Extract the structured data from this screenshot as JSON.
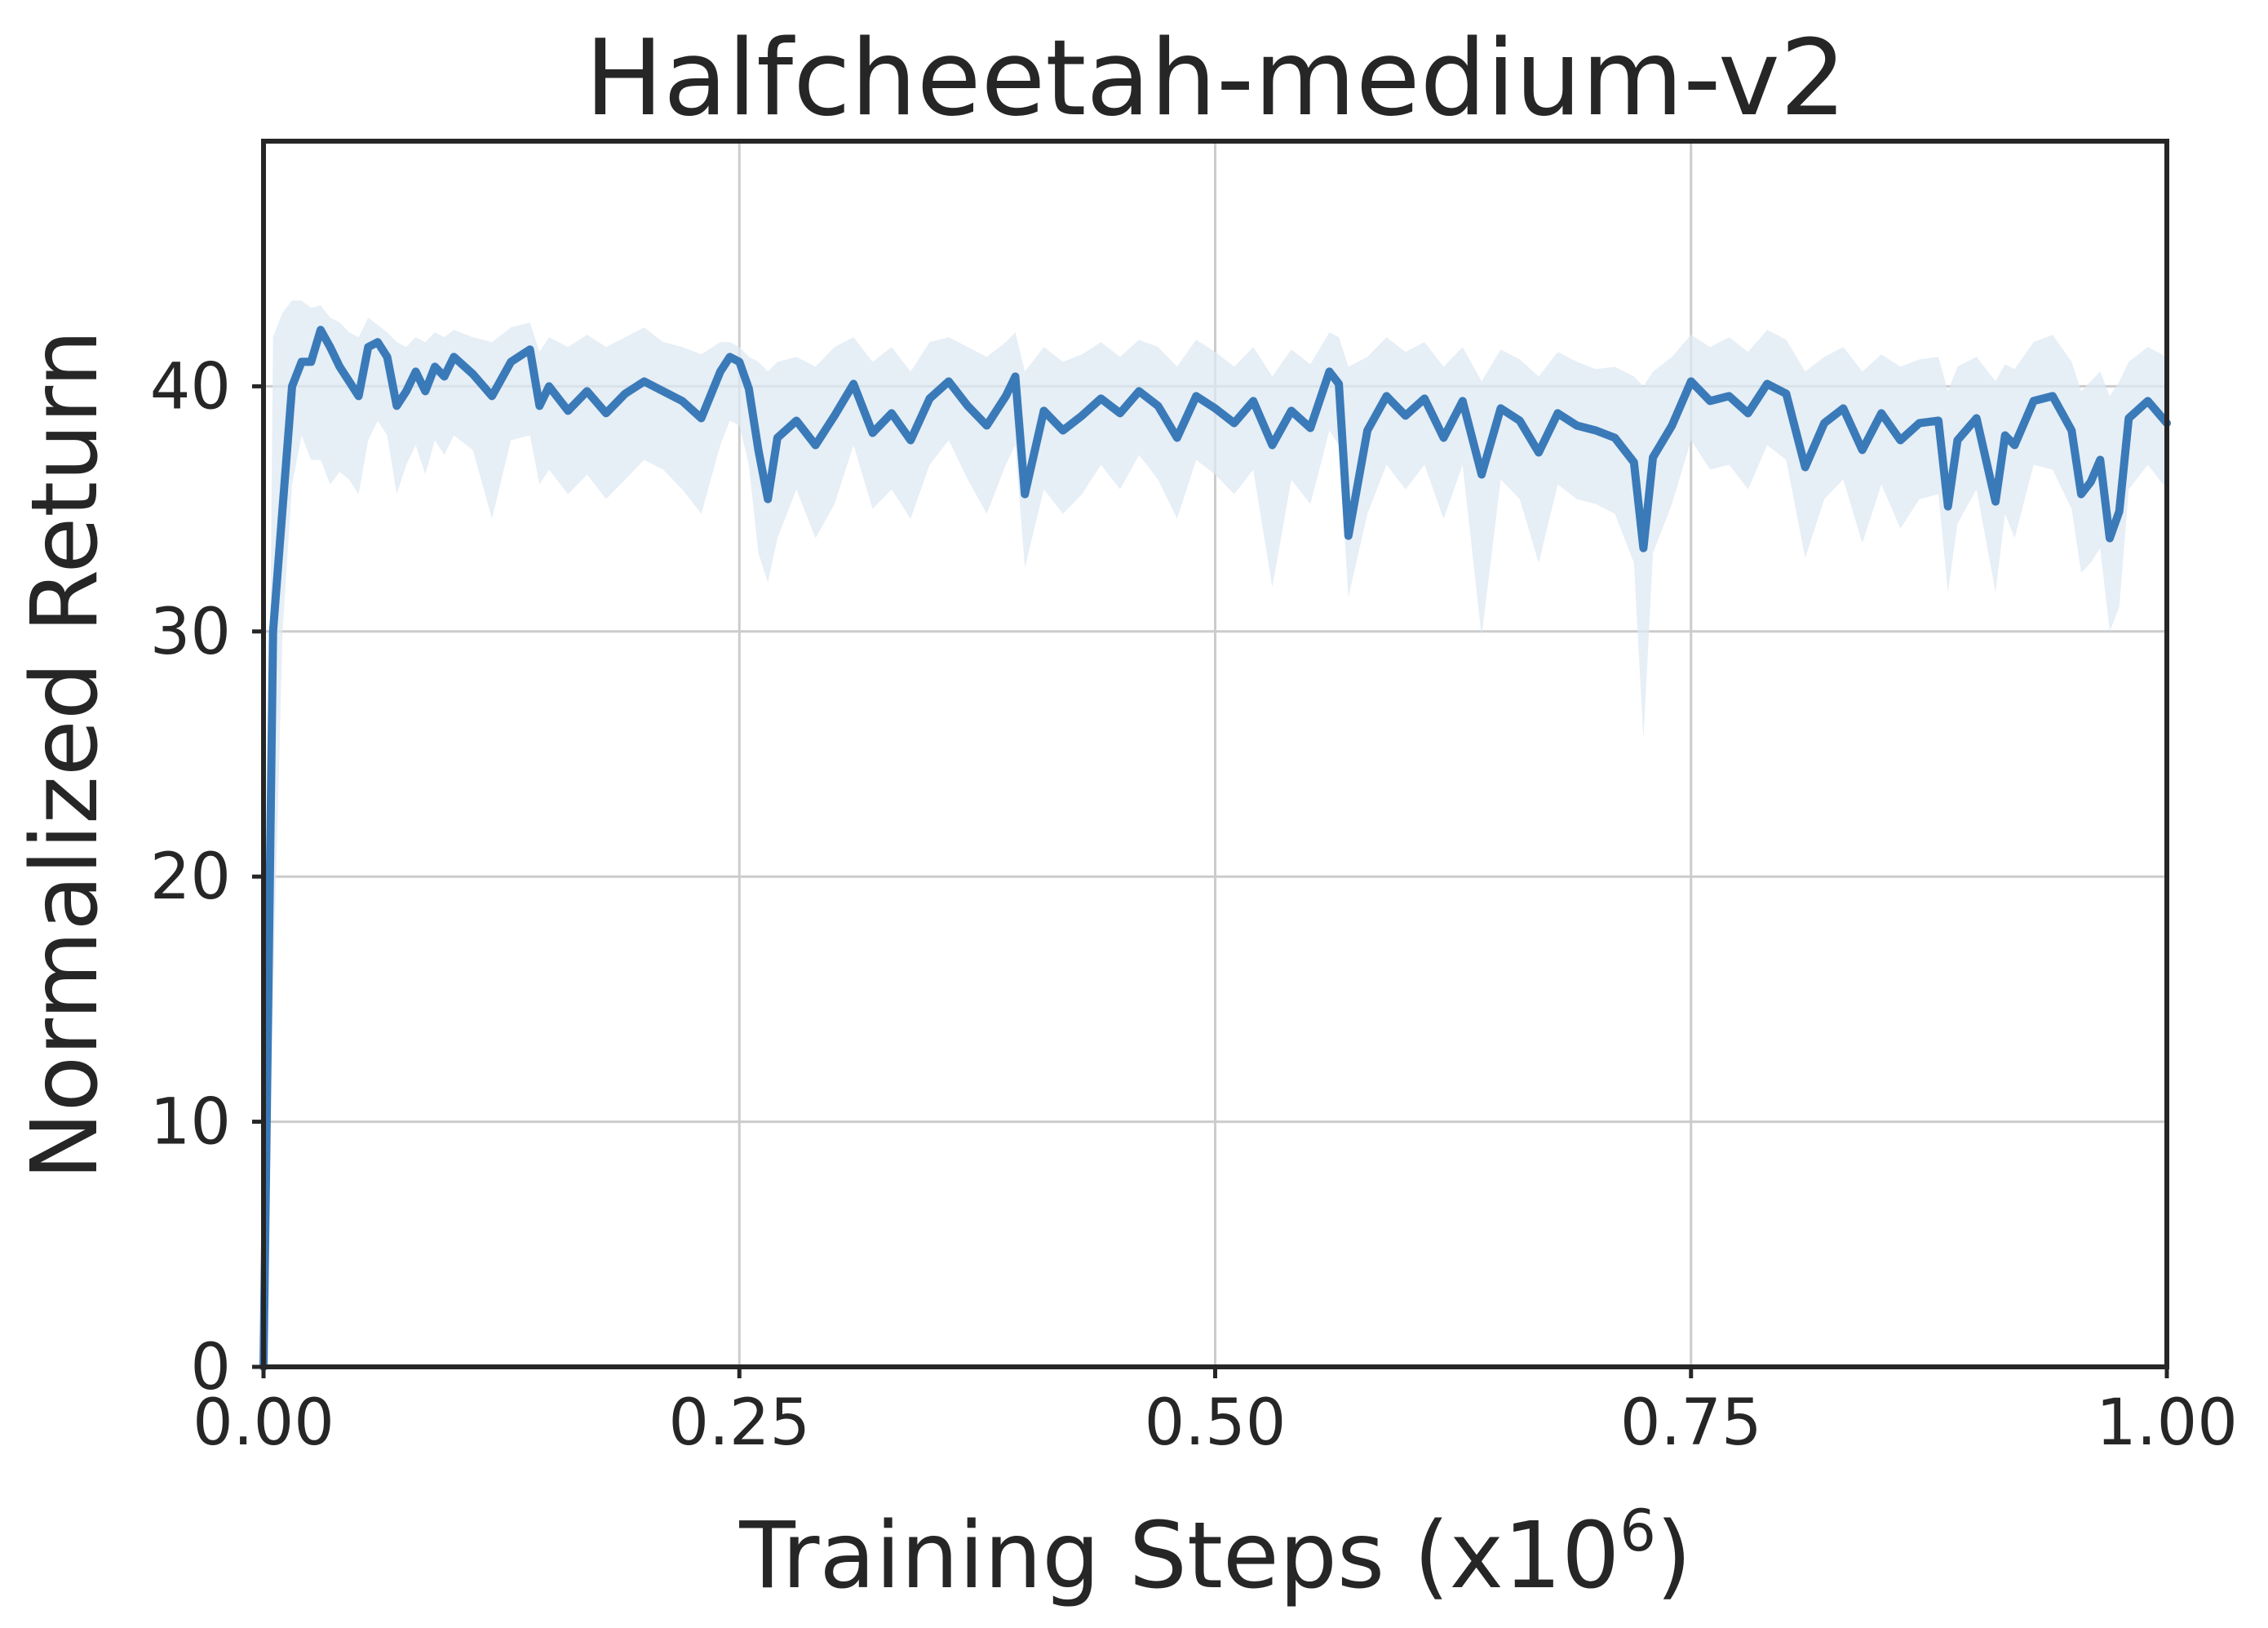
{
  "chart_data": {
    "type": "line",
    "title": "Halfcheetah-medium-v2",
    "xlabel_main": "Training Steps (x10",
    "xlabel_exp": "6",
    "xlabel_close": ")",
    "ylabel": "Normalized Return",
    "xlim": [
      0,
      1
    ],
    "ylim": [
      0,
      50
    ],
    "grid": true,
    "xticks": [
      0,
      0.25,
      0.5,
      0.75,
      1.0
    ],
    "xtick_labels": [
      "0.00",
      "0.25",
      "0.50",
      "0.75",
      "1.00"
    ],
    "yticks": [
      0,
      10,
      20,
      30,
      40
    ],
    "ytick_labels": [
      "0",
      "10",
      "20",
      "30",
      "40"
    ],
    "colors": {
      "line": "#3a7ab8",
      "band": "#dde8f3"
    },
    "series": [
      {
        "x": [
          0.0,
          0.005,
          0.01,
          0.015,
          0.02,
          0.025,
          0.03,
          0.035,
          0.04,
          0.045,
          0.05,
          0.055,
          0.06,
          0.065,
          0.07,
          0.075,
          0.08,
          0.085,
          0.09,
          0.095,
          0.1,
          0.11,
          0.12,
          0.13,
          0.14,
          0.145,
          0.15,
          0.16,
          0.17,
          0.18,
          0.19,
          0.2,
          0.21,
          0.22,
          0.23,
          0.24,
          0.245,
          0.25,
          0.255,
          0.26,
          0.265,
          0.27,
          0.28,
          0.29,
          0.3,
          0.31,
          0.32,
          0.33,
          0.34,
          0.35,
          0.36,
          0.37,
          0.38,
          0.39,
          0.395,
          0.4,
          0.41,
          0.42,
          0.43,
          0.44,
          0.45,
          0.46,
          0.47,
          0.48,
          0.49,
          0.5,
          0.51,
          0.52,
          0.53,
          0.54,
          0.55,
          0.56,
          0.565,
          0.57,
          0.58,
          0.59,
          0.6,
          0.61,
          0.62,
          0.63,
          0.64,
          0.65,
          0.66,
          0.67,
          0.68,
          0.69,
          0.7,
          0.71,
          0.72,
          0.725,
          0.73,
          0.74,
          0.75,
          0.76,
          0.77,
          0.78,
          0.79,
          0.8,
          0.81,
          0.82,
          0.83,
          0.84,
          0.85,
          0.86,
          0.87,
          0.88,
          0.885,
          0.89,
          0.9,
          0.91,
          0.915,
          0.92,
          0.93,
          0.94,
          0.95,
          0.955,
          0.96,
          0.965,
          0.97,
          0.975,
          0.98,
          0.99,
          1.0
        ],
        "mean": [
          0,
          30,
          35,
          40,
          41,
          41,
          42.3,
          41.6,
          40.8,
          40.2,
          39.6,
          41.6,
          41.8,
          41.2,
          39.2,
          39.8,
          40.6,
          39.8,
          40.8,
          40.4,
          41.2,
          40.5,
          39.6,
          41.0,
          41.5,
          39.2,
          40.0,
          39.0,
          39.8,
          38.9,
          39.7,
          40.2,
          39.8,
          39.4,
          38.7,
          40.6,
          41.2,
          41.0,
          39.9,
          37.4,
          35.4,
          37.9,
          38.6,
          37.6,
          38.8,
          40.1,
          38.1,
          38.9,
          37.8,
          39.5,
          40.2,
          39.2,
          38.4,
          39.6,
          40.4,
          35.6,
          39.0,
          38.2,
          38.8,
          39.5,
          38.9,
          39.8,
          39.2,
          37.9,
          39.6,
          39.1,
          38.5,
          39.4,
          37.6,
          39.0,
          38.3,
          40.6,
          40.1,
          33.9,
          38.2,
          39.6,
          38.8,
          39.5,
          37.9,
          39.4,
          36.4,
          39.1,
          38.6,
          37.3,
          38.9,
          38.4,
          38.2,
          37.9,
          36.9,
          33.4,
          37.1,
          38.4,
          40.2,
          39.4,
          39.6,
          38.9,
          40.1,
          39.7,
          36.7,
          38.5,
          39.1,
          37.4,
          38.9,
          37.8,
          38.5,
          38.6,
          35.1,
          37.8,
          38.7,
          35.3,
          38.0,
          37.6,
          39.4,
          39.6,
          38.2,
          35.6,
          36.1,
          37.0,
          33.8,
          34.9,
          38.7,
          39.4,
          38.5
        ],
        "upper": [
          0,
          42,
          43,
          43.5,
          43.5,
          43.2,
          43.3,
          42.8,
          42.6,
          42.2,
          42.0,
          42.8,
          42.5,
          42.2,
          41.8,
          41.6,
          42.0,
          41.8,
          42.2,
          42.0,
          42.3,
          42.0,
          41.8,
          42.4,
          42.6,
          41.4,
          42.0,
          41.6,
          42.1,
          41.6,
          42.0,
          42.4,
          41.8,
          41.6,
          41.3,
          41.8,
          41.8,
          41.6,
          41.2,
          41.0,
          40.6,
          41.0,
          41.2,
          40.8,
          41.6,
          42.0,
          41.0,
          41.6,
          40.6,
          41.8,
          42.0,
          41.6,
          41.2,
          41.8,
          42.2,
          40.6,
          41.6,
          41.0,
          41.3,
          41.8,
          41.2,
          41.9,
          41.6,
          40.8,
          41.9,
          41.4,
          40.8,
          41.6,
          40.4,
          41.5,
          40.9,
          42.2,
          42.0,
          40.8,
          41.2,
          42.0,
          41.4,
          41.8,
          40.8,
          41.6,
          40.2,
          41.5,
          41.1,
          40.4,
          41.4,
          41.0,
          40.7,
          40.8,
          40.4,
          40.0,
          40.6,
          41.2,
          42.1,
          41.6,
          42.0,
          41.4,
          42.3,
          41.9,
          40.6,
          41.2,
          41.6,
          40.6,
          41.3,
          40.8,
          41.1,
          41.2,
          39.8,
          40.8,
          41.2,
          40.2,
          40.9,
          40.7,
          41.8,
          42.1,
          41.0,
          39.8,
          40.2,
          40.6,
          39.6,
          40.2,
          41.0,
          41.6,
          41.2
        ],
        "lower": [
          0,
          15,
          30,
          36,
          38,
          37,
          37,
          36,
          36.5,
          36.2,
          35.6,
          37.8,
          38.6,
          38.0,
          35.6,
          36.8,
          37.6,
          36.4,
          37.8,
          37.2,
          38.0,
          37.4,
          34.6,
          37.8,
          38.0,
          36.0,
          36.6,
          35.6,
          36.4,
          35.4,
          36.2,
          37.0,
          36.6,
          35.8,
          34.8,
          37.6,
          38.6,
          38.4,
          36.8,
          33.2,
          32.0,
          33.8,
          35.8,
          33.8,
          35.2,
          37.6,
          35.0,
          35.8,
          34.6,
          36.8,
          37.8,
          36.2,
          34.8,
          36.8,
          37.6,
          32.6,
          35.8,
          34.8,
          35.6,
          36.8,
          35.8,
          37.2,
          36.2,
          34.6,
          37.0,
          36.4,
          35.6,
          36.6,
          31.8,
          36.2,
          35.2,
          38.2,
          37.6,
          31.4,
          34.8,
          36.8,
          35.8,
          36.8,
          34.6,
          36.8,
          29.8,
          36.2,
          35.4,
          32.8,
          36.0,
          35.4,
          35.2,
          34.8,
          32.8,
          25.6,
          33.2,
          35.2,
          37.8,
          36.6,
          36.8,
          35.8,
          37.6,
          37.0,
          33.0,
          35.4,
          36.2,
          33.6,
          36.0,
          34.2,
          35.4,
          35.6,
          31.6,
          34.4,
          35.8,
          31.6,
          34.8,
          33.8,
          36.8,
          36.6,
          35.0,
          32.4,
          32.8,
          33.4,
          30.0,
          31.0,
          35.8,
          36.8,
          35.8
        ]
      }
    ]
  }
}
